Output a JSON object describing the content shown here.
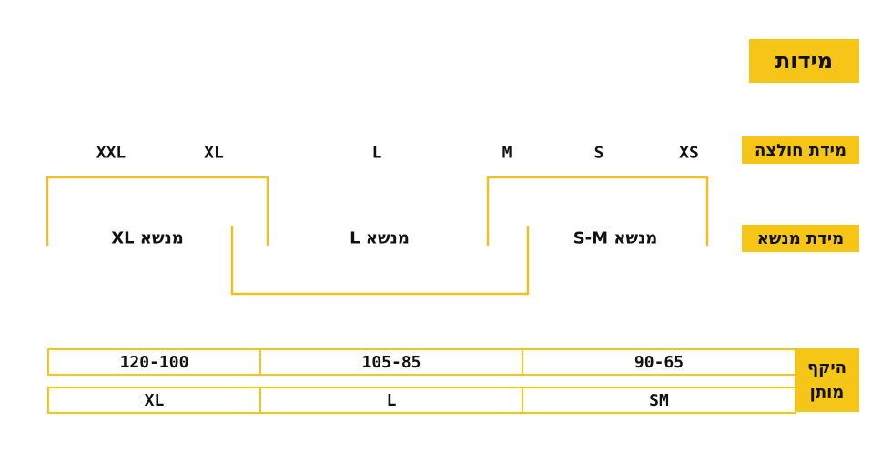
{
  "title": "מידות",
  "shirt_size": {
    "label": "מידת חולצה",
    "sizes": [
      "XS",
      "S",
      "M",
      "L",
      "XL",
      "XXL"
    ]
  },
  "carrier_size": {
    "label": "מידת מנשא",
    "sizes": [
      "מנשא S-M",
      "מנשא L",
      "מנשא XL"
    ]
  },
  "waist": {
    "label": "היקף מותן",
    "ranges": [
      "90-65",
      "105-85",
      "120-100"
    ],
    "sizes": [
      "SM",
      "L",
      "XL"
    ]
  }
}
